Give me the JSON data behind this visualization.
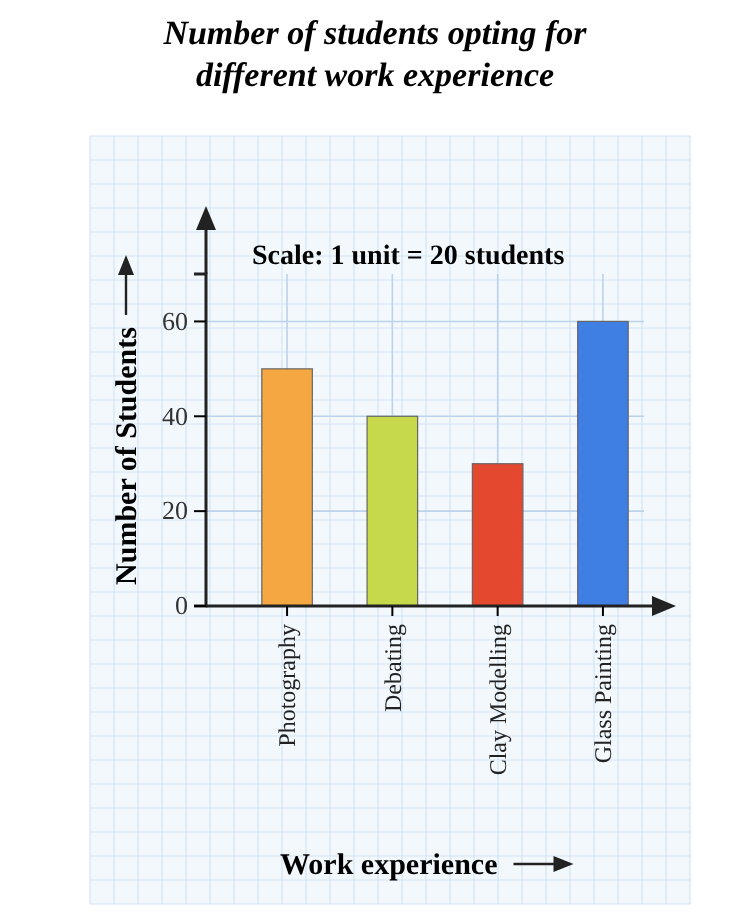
{
  "chart_data": {
    "type": "bar",
    "title": "Number of students opting for different work experience",
    "xlabel": "Work experience",
    "ylabel": "Number of Students",
    "categories": [
      "Photography",
      "Debating",
      "Clay Modelling",
      "Glass Painting"
    ],
    "values": [
      50,
      40,
      30,
      60
    ],
    "colors": [
      "#f5a742",
      "#c5d94a",
      "#e4492f",
      "#3f7fe3"
    ],
    "ylim": [
      0,
      70
    ],
    "yticks": [
      0,
      20,
      40,
      60
    ],
    "grid": true,
    "annotations": [
      "Scale: 1 unit = 20 students"
    ]
  }
}
